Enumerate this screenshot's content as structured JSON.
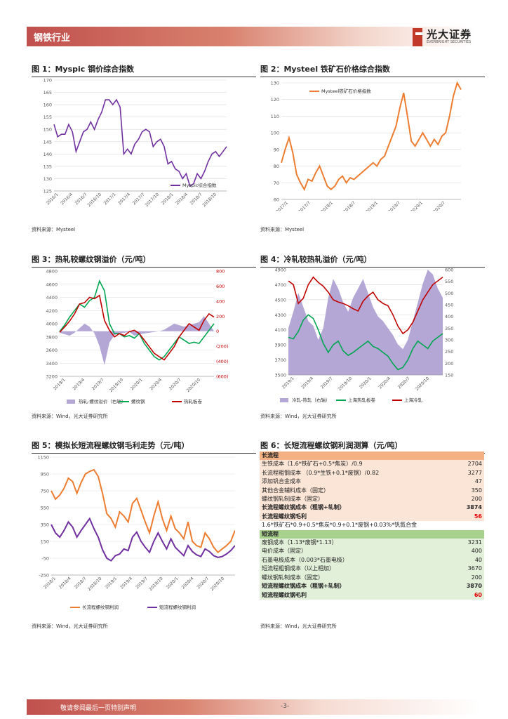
{
  "header": {
    "section": "钢铁行业",
    "logo_cn": "光大证券",
    "logo_en": "EVERBRIGHT SECURITIES"
  },
  "fig1": {
    "title": "图 1：Myspic 钢价综合指数",
    "source": "资料来源：Mysteel",
    "chart_data": {
      "type": "line",
      "series": [
        {
          "name": "Myspic综合指数",
          "color": "#7030a0"
        }
      ],
      "yticks": [
        "125",
        "130",
        "135",
        "140",
        "145",
        "150",
        "155",
        "160",
        "165",
        "170"
      ],
      "xticks": [
        "2016/1",
        "2016/4",
        "2016/7",
        "2016/10",
        "2017/1",
        "2017/4",
        "2017/7",
        "2017/10",
        "2018/1",
        "2018/4",
        "2018/7",
        "2018/10"
      ],
      "ylim": [
        125,
        170
      ],
      "values": [
        152,
        147,
        148,
        148,
        152,
        149,
        141,
        145,
        149,
        150,
        153,
        150,
        154,
        157,
        162,
        162,
        160,
        162,
        159,
        140,
        142,
        140,
        144,
        146,
        149,
        150,
        149,
        143,
        145,
        146,
        143,
        136,
        137,
        134,
        133,
        130,
        132,
        127,
        128,
        132,
        130,
        133,
        137,
        140,
        141,
        139,
        141,
        143
      ]
    }
  },
  "fig2": {
    "title": "图 2：Mysteel 铁矿石价格综合指数",
    "source": "资料来源：Mysteel",
    "chart_data": {
      "type": "line",
      "series": [
        {
          "name": "Mysteel铁矿石价格指数",
          "color": "#ed7d31"
        }
      ],
      "yticks": [
        "60",
        "70",
        "80",
        "90",
        "100",
        "110",
        "120",
        "130"
      ],
      "xticks": [
        "2017/1",
        "2017/7",
        "2018/1",
        "2018/7",
        "2019/1",
        "2019/7",
        "2020/1",
        "2020/7"
      ],
      "ylim": [
        60,
        130
      ],
      "values": [
        82,
        90,
        97,
        88,
        75,
        70,
        66,
        72,
        71,
        76,
        80,
        74,
        68,
        66,
        68,
        72,
        74,
        70,
        73,
        72,
        74,
        76,
        78,
        80,
        82,
        80,
        84,
        86,
        92,
        98,
        104,
        115,
        124,
        110,
        95,
        92,
        96,
        100,
        96,
        92,
        96,
        93,
        98,
        100,
        110,
        122,
        130,
        126
      ]
    }
  },
  "fig3": {
    "title": "图 3：热轧较螺纹钢溢价（元/吨）",
    "source": "资料来源：Wind，光大证券研究所",
    "chart_data": {
      "type": "line",
      "series": [
        {
          "name": "热轧-螺纹溢价（右轴）",
          "color": "#b4a7d6"
        },
        {
          "name": "螺纹钢",
          "color": "#00a651"
        },
        {
          "name": "热轧板卷",
          "color": "#c00000"
        }
      ],
      "yticks_left": [
        "3200",
        "3400",
        "3600",
        "3800",
        "4000",
        "4200",
        "4400",
        "4600",
        "4800"
      ],
      "yticks_right": [
        "(600)",
        "(400)",
        "(200)",
        "0",
        "200",
        "400",
        "600",
        "800"
      ],
      "xticks": [
        "2019/1",
        "2019/4",
        "2019/7",
        "2019/10",
        "2020/1",
        "2020/4",
        "2020/7",
        "2020/10"
      ],
      "ylim_left": [
        3200,
        4800
      ],
      "ylim_right": [
        -600,
        800
      ],
      "diff": [
        -20,
        -40,
        -60,
        -20,
        40,
        100,
        60,
        -30,
        -200,
        -450,
        -150,
        -50,
        -30,
        -20,
        -10,
        -60,
        -40,
        -30,
        -20,
        -10,
        0,
        20,
        60,
        100,
        80,
        60,
        80,
        100,
        120,
        200,
        100,
        0
      ],
      "rebar": [
        3880,
        3980,
        4100,
        4200,
        4300,
        4250,
        4350,
        4400,
        4650,
        4500,
        4000,
        3850,
        3850,
        3800,
        3820,
        3780,
        3850,
        3700,
        3600,
        3500,
        3450,
        3500,
        3600,
        3700,
        3800,
        3750,
        3700,
        3720,
        3700,
        3800,
        3900,
        4000
      ],
      "hrc": [
        3870,
        3950,
        4040,
        4150,
        4300,
        4320,
        4400,
        4380,
        4430,
        4050,
        3900,
        3800,
        3850,
        3820,
        3880,
        3900,
        3850,
        3750,
        3650,
        3550,
        3500,
        3450,
        3550,
        3650,
        3800,
        3900,
        4000,
        3950,
        3900,
        4050,
        4150,
        4100
      ]
    }
  },
  "fig4": {
    "title": "图 4：冷轧较热轧溢价（元/吨）",
    "source": "资料来源：Wind，光大证券研究所",
    "chart_data": {
      "type": "line",
      "series": [
        {
          "name": "冷轧-热轧（右轴）",
          "color": "#b4a7d6"
        },
        {
          "name": "上海热轧板卷",
          "color": "#00a651"
        },
        {
          "name": "上海冷轧",
          "color": "#c00000"
        }
      ],
      "yticks_left": [
        "3500",
        "3700",
        "3900",
        "4100",
        "4300",
        "4500",
        "4700",
        "4900"
      ],
      "yticks_right": [
        "150",
        "200",
        "250",
        "300",
        "350",
        "400",
        "450",
        "500",
        "550",
        "600"
      ],
      "xticks": [
        "2019/1",
        "2019/4",
        "2019/7",
        "2019/10",
        "2020/1",
        "2020/4",
        "2020/7",
        "2020/10"
      ],
      "ylim_left": [
        3500,
        4900
      ],
      "ylim_right": [
        150,
        600
      ],
      "diff": [
        350,
        420,
        500,
        440,
        380,
        360,
        300,
        350,
        480,
        560,
        520,
        460,
        420,
        480,
        520,
        560,
        500,
        440,
        400,
        380,
        350,
        320,
        280,
        260,
        300,
        380,
        460,
        540,
        600,
        580,
        520,
        480
      ],
      "hrc": [
        4000,
        3980,
        4080,
        4230,
        4300,
        4250,
        4100,
        3920,
        3800,
        3900,
        3950,
        3820,
        3760,
        3800,
        3850,
        3900,
        3950,
        3880,
        3850,
        3800,
        3750,
        3650,
        3570,
        3600,
        3700,
        3850,
        3950,
        3900,
        3850,
        3950,
        4000,
        4050
      ],
      "crc": [
        4750,
        4700,
        4450,
        4520,
        4700,
        4800,
        4730,
        4680,
        4600,
        4500,
        4470,
        4450,
        4420,
        4380,
        4350,
        4480,
        4550,
        4600,
        4500,
        4450,
        4420,
        4300,
        4150,
        4050,
        4100,
        4200,
        4350,
        4500,
        4600,
        4700,
        4750,
        4800
      ]
    }
  },
  "fig5": {
    "title": "图 5：模拟长短流程螺纹钢毛利走势（元/吨）",
    "source": "资料来源：Wind，光大证券研究所",
    "chart_data": {
      "type": "line",
      "series": [
        {
          "name": "长流程螺纹钢利润",
          "color": "#ed7d31"
        },
        {
          "name": "短流程螺纹钢利润",
          "color": "#7030a0"
        }
      ],
      "yticks": [
        "-250",
        "-50",
        "150",
        "350",
        "550",
        "750",
        "950",
        "1150"
      ],
      "xticks": [
        "2018/1",
        "2018/4",
        "2018/7",
        "2018/10",
        "2019/1",
        "2019/4",
        "2019/7",
        "2019/10",
        "2020/1",
        "2020/4",
        "2020/7",
        "2020/10"
      ],
      "ylim": [
        -250,
        1150
      ],
      "long": [
        750,
        650,
        700,
        780,
        900,
        860,
        720,
        850,
        950,
        980,
        1000,
        920,
        720,
        480,
        420,
        320,
        500,
        450,
        380,
        600,
        660,
        520,
        380,
        250,
        450,
        620,
        420,
        280,
        450,
        300,
        250,
        180,
        380,
        150,
        100,
        80,
        250,
        180,
        80,
        20,
        60,
        100,
        150,
        280
      ],
      "short": [
        350,
        250,
        200,
        280,
        380,
        320,
        200,
        280,
        350,
        420,
        300,
        200,
        50,
        -50,
        -80,
        -20,
        0,
        60,
        40,
        200,
        260,
        150,
        80,
        20,
        150,
        250,
        150,
        60,
        180,
        80,
        30,
        -20,
        100,
        30,
        -10,
        -30,
        60,
        30,
        -20,
        -40,
        -30,
        0,
        40,
        100
      ]
    }
  },
  "fig6": {
    "title": "图 6：长短流程螺纹钢利润测算（元/吨）",
    "source": "资料来源：Wind，光大证券研究所",
    "long_header": "长流程",
    "long_rows": [
      {
        "label": "生铁成本（1.6*铁矿石+0.5*焦炭）/0.9",
        "value": "2704"
      },
      {
        "label": "长流程粗钢成本 （0.9*生铁+0.1*废钢）/0.82",
        "value": "3277"
      },
      {
        "label": "添加钒合金成本",
        "value": "47"
      },
      {
        "label": "其他合金辅料成本（固定）",
        "value": "350"
      },
      {
        "label": "螺纹钢轧制成本（固定）",
        "value": "200"
      }
    ],
    "long_total": {
      "label": "长流程螺纹钢成本（粗钢+轧制）",
      "value": "3874"
    },
    "long_profit": {
      "label": "长流程螺纹钢毛利",
      "value": "56"
    },
    "formula": "1.6*铁矿石*0.9+0.5*焦炭*0.9+0.1*废钢+0.03%*钒氮合金",
    "short_header": "短流程",
    "short_rows": [
      {
        "label": "废钢成本（1.13*废钢*1.13）",
        "value": "3231"
      },
      {
        "label": "电价成本（固定）",
        "value": "400"
      },
      {
        "label": "石墨电极成本（0.003*石墨电极）",
        "value": "40"
      },
      {
        "label": "短流程粗钢成本（以上相加）",
        "value": "3670"
      },
      {
        "label": "螺纹钢轧制成本（固定）",
        "value": "200"
      }
    ],
    "short_total": {
      "label": "短流程螺纹钢成本（粗钢+轧制）",
      "value": "3870"
    },
    "short_profit": {
      "label": "短流程螺纹钢毛利",
      "value": "60"
    }
  },
  "footer": {
    "disclaimer": "敬请参阅最后一页特别声明",
    "page": "-3-"
  }
}
